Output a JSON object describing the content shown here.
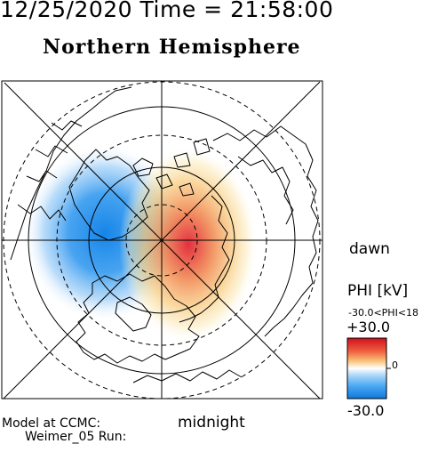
{
  "header": {
    "date": "12/25/2020",
    "time_label": "Time =",
    "time": "21:58:00"
  },
  "title": "Northern Hemisphere",
  "labels": {
    "dawn": "dawn",
    "midnight": "midnight",
    "model_line1": "Model at CCMC:",
    "model_line2": "Weimer_05 Run:"
  },
  "colorbar": {
    "title": "PHI [kV]",
    "range_text": "-30.0<PHI<18",
    "max_label": "+30.0",
    "mid_label": "0",
    "min_label": "-30.0",
    "colors": {
      "max": "#e0182a",
      "mid": "#ffffff",
      "min": "#1585e8"
    }
  },
  "map": {
    "projection": "polar, north pole centred",
    "grid": {
      "solid_circles": 3,
      "dashed_circles": 3,
      "meridian_lines": 8
    },
    "potential_cells": [
      {
        "polarity": "negative",
        "color": "#1585e8",
        "side": "dusk / evening",
        "min_kv": -30.0
      },
      {
        "polarity": "positive",
        "color": "#e0182a",
        "side": "dawn / morning",
        "max_kv": 18
      }
    ],
    "coastline_color": "#000000"
  }
}
